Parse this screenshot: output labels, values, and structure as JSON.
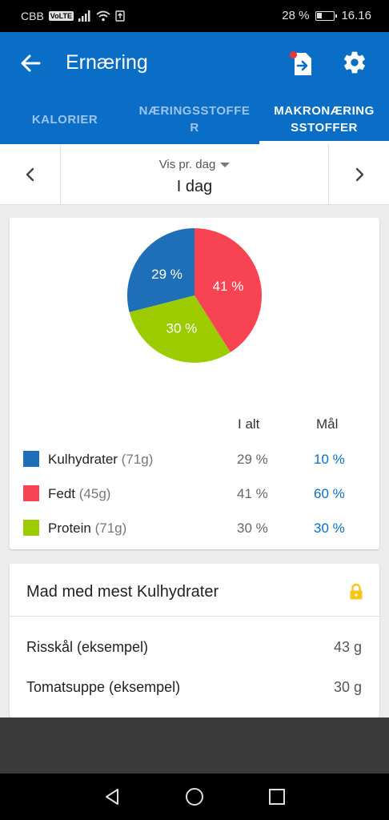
{
  "status_bar": {
    "carrier": "CBB",
    "volte": "VoLTE",
    "battery": "28 %",
    "time": "16.16"
  },
  "app_bar": {
    "title": "Ernæring",
    "icons": [
      "back-arrow-icon",
      "export-icon",
      "gear-icon"
    ],
    "color": "#0a6ec7"
  },
  "tabs": [
    {
      "label": "KALORIER",
      "active": false
    },
    {
      "label": "NÆRINGSSTOFFE R",
      "active": false
    },
    {
      "label": "MAKRONÆRING SSTOFFER",
      "active": true
    }
  ],
  "date_nav": {
    "view_label": "Vis pr. dag",
    "value": "I dag"
  },
  "chart_data": {
    "type": "pie",
    "slices": [
      {
        "label": "Kulhydrater",
        "value": 29,
        "display": "29 %",
        "color": "#1f6fb8"
      },
      {
        "label": "Fedt",
        "value": 41,
        "display": "41 %",
        "color": "#f84452"
      },
      {
        "label": "Protein",
        "value": 30,
        "display": "30 %",
        "color": "#9ccc00"
      }
    ]
  },
  "macros": {
    "headers": {
      "total": "I alt",
      "goal": "Mål"
    },
    "rows": [
      {
        "name": "Kulhydrater",
        "grams": "(71g)",
        "total": "29 %",
        "goal": "10 %",
        "color": "#1f6fb8"
      },
      {
        "name": "Fedt",
        "grams": "(45g)",
        "total": "41 %",
        "goal": "60 %",
        "color": "#f84452"
      },
      {
        "name": "Protein",
        "grams": "(71g)",
        "total": "30 %",
        "goal": "30 %",
        "color": "#9ccc00"
      }
    ]
  },
  "top_foods": {
    "title": "Mad med mest Kulhydrater",
    "items": [
      {
        "name": "Risskål (eksempel)",
        "amount": "43 g"
      },
      {
        "name": "Tomatsuppe (eksempel)",
        "amount": "30 g"
      }
    ]
  }
}
